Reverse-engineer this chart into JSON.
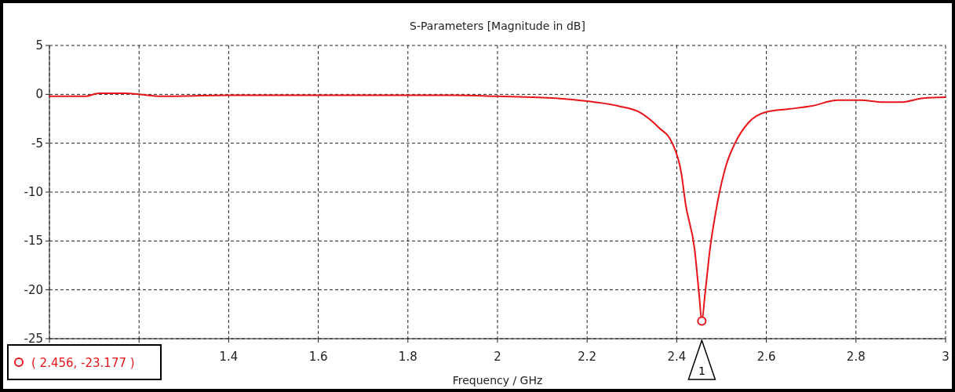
{
  "chart_data": {
    "type": "line",
    "title": "S-Parameters [Magnitude in dB]",
    "xlabel": "Frequency / GHz",
    "xlim": [
      1,
      3
    ],
    "xticks": [
      {
        "value": 1,
        "label": null
      },
      {
        "value": 1.2,
        "label": null
      },
      1.4,
      1.6,
      1.8,
      2,
      2.2,
      2.4,
      2.6,
      2.8,
      3
    ],
    "ylim": [
      -25,
      5
    ],
    "yticks": [
      -25,
      -20,
      -15,
      -10,
      -5,
      0,
      5
    ],
    "grid": true,
    "line_style": "solid",
    "marker": "none",
    "series": [
      {
        "color": "#e8141a",
        "x": [
          1.0,
          1.08,
          1.11,
          1.17,
          1.2,
          1.25,
          1.4,
          1.6,
          1.8,
          1.9,
          2.0,
          2.13,
          2.2,
          2.27,
          2.32,
          2.36,
          2.39,
          2.41,
          2.42,
          2.44,
          2.45,
          2.456,
          2.463,
          2.474,
          2.49,
          2.51,
          2.53,
          2.56,
          2.6,
          2.65,
          2.7,
          2.76,
          2.81,
          2.86,
          2.9,
          2.95,
          3.0
        ],
        "values": [
          -0.2,
          -0.2,
          0.1,
          0.1,
          0,
          -0.2,
          -0.1,
          -0.1,
          -0.1,
          -0.1,
          -0.2,
          -0.4,
          -0.7,
          -1.2,
          -1.9,
          -3.4,
          -5,
          -8,
          -11.3,
          -15.9,
          -20.5,
          -23.2,
          -20.5,
          -15.9,
          -11.3,
          -7.3,
          -5,
          -2.9,
          -1.8,
          -1.5,
          -1.2,
          -0.6,
          -0.6,
          -0.8,
          -0.8,
          -0.4,
          -0.3
        ]
      }
    ],
    "annotations": [
      "( 2.456, -23.177 )",
      "1"
    ]
  }
}
